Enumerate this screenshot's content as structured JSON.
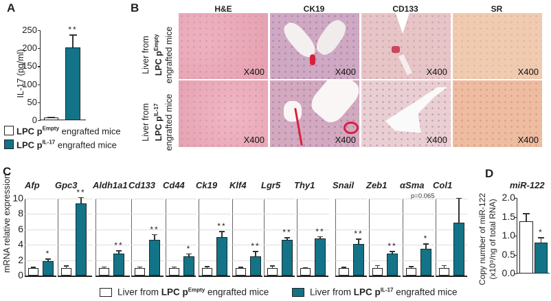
{
  "colors": {
    "empty": "#ffffff",
    "il17": "#137387",
    "he_tissue": "#e9a7b4",
    "ck19_tissue": "#cfa9c2",
    "cd133_tissue": "#e6c2c6",
    "sr_tissue": "#efc7a8",
    "stain_red": "#d6213e"
  },
  "panelA": {
    "letter": "A",
    "ylabel": "IL-17 (pg/ml)",
    "ticks": [
      "250",
      "200",
      "150",
      "100",
      "50",
      "0"
    ],
    "star": "**",
    "legend": [
      {
        "prefix": "LPC p",
        "sup": "Empty",
        "suffix": " engrafted mice"
      },
      {
        "prefix": "LPC p",
        "sup": "IL-17",
        "suffix": " engrafted mice"
      }
    ]
  },
  "panelB": {
    "letter": "B",
    "columns": [
      "H&E",
      "CK19",
      "CD133",
      "SR"
    ],
    "rows": [
      {
        "line1": "Liver from",
        "line2_prefix": "LPC p",
        "line2_sup": "Empty",
        "line3": "engrafted mice"
      },
      {
        "line1": "Liver from",
        "line2_prefix": "LPC p",
        "line2_sup": "IL-17",
        "line3": "engrafted mice"
      }
    ],
    "magnification": "X400"
  },
  "panelC": {
    "letter": "C",
    "ylabel": "mRNA relative expression",
    "ticks": [
      "10",
      "8",
      "6",
      "4",
      "2",
      "0"
    ],
    "annotation": "p=0.065",
    "legend": [
      {
        "prefix": "Liver from ",
        "bold": "LPC p",
        "sup": "Empty",
        "suffix": " engrafted mice"
      },
      {
        "prefix": "Liver from ",
        "bold": "LPC p",
        "sup": "IL-17",
        "suffix": " engrafted mice"
      }
    ]
  },
  "panelD": {
    "letter": "D",
    "title": "miR-122",
    "ylabel_line1": "Copy number of miR-122",
    "ylabel_line2": "(x10⁹/ng of total RNA)",
    "ticks": [
      "2.0",
      "1.5",
      "1.0",
      "0.5",
      "0.0"
    ],
    "star": "*"
  },
  "chart_data": [
    {
      "type": "bar",
      "title": "A",
      "categories": [
        "LPC pEmpty engrafted mice",
        "LPC pIL-17 engrafted mice"
      ],
      "values": [
        8,
        203
      ],
      "errors": [
        2,
        35
      ],
      "significance": [
        "",
        "**"
      ],
      "xlabel": "",
      "ylabel": "IL-17 (pg/ml)",
      "ylim": [
        0,
        250
      ],
      "yticks": [
        0,
        50,
        100,
        150,
        200,
        250
      ],
      "legend_position": "bottom-left",
      "grid": false
    },
    {
      "type": "bar",
      "title": "C",
      "categories": [
        "Afp",
        "Gpc3",
        "Aldh1a1",
        "Cd133",
        "Cd44",
        "Ck19",
        "Klf4",
        "Lgr5",
        "Thy1",
        "Snail",
        "Zeb1",
        "αSma",
        "Col1"
      ],
      "series": [
        {
          "name": "Liver from LPC pEmpty engrafted mice",
          "values": [
            1.0,
            1.0,
            1.0,
            1.0,
            1.0,
            1.0,
            1.0,
            1.0,
            1.0,
            1.0,
            1.0,
            1.0,
            1.0
          ],
          "errors": [
            0.15,
            0.3,
            0.2,
            0.2,
            0.2,
            0.25,
            0.15,
            0.3,
            0.1,
            0.15,
            0.35,
            0.25,
            0.35
          ]
        },
        {
          "name": "Liver from LPC pIL-17 engrafted mice",
          "values": [
            1.9,
            9.4,
            2.9,
            4.6,
            2.5,
            5.0,
            2.5,
            4.6,
            4.8,
            4.1,
            2.9,
            3.5,
            6.9
          ],
          "errors": [
            0.3,
            0.8,
            0.4,
            0.8,
            0.4,
            0.8,
            0.7,
            0.4,
            0.3,
            0.7,
            0.3,
            0.7,
            3.2
          ]
        }
      ],
      "significance": [
        "*",
        "**",
        "**",
        "**",
        "*",
        "**",
        "**",
        "**",
        "**",
        "**",
        "**",
        "*",
        "p=0.065"
      ],
      "xlabel": "",
      "ylabel": "mRNA relative expression",
      "ylim": [
        0,
        10
      ],
      "yticks": [
        0,
        2,
        4,
        6,
        8,
        10
      ],
      "grid": true,
      "legend_position": "bottom"
    },
    {
      "type": "bar",
      "title": "miR-122",
      "categories": [
        "Liver from LPC pEmpty engrafted mice",
        "Liver from LPC pIL-17 engrafted mice"
      ],
      "values": [
        1.38,
        0.82
      ],
      "errors": [
        0.22,
        0.14
      ],
      "significance": [
        "",
        "*"
      ],
      "xlabel": "",
      "ylabel": "Copy number of miR-122 (x10^9/ng of total RNA)",
      "ylim": [
        0,
        2.0
      ],
      "yticks": [
        0,
        0.5,
        1.0,
        1.5,
        2.0
      ],
      "grid": false
    }
  ]
}
